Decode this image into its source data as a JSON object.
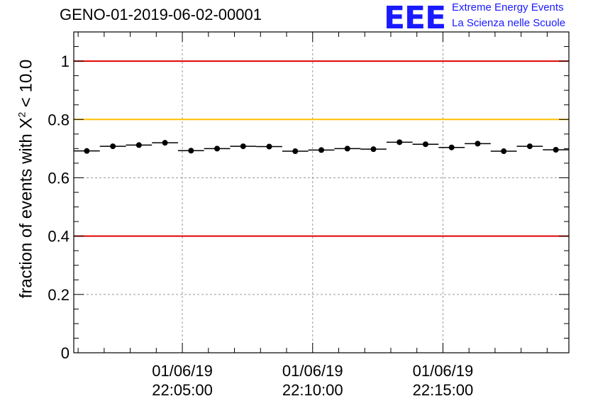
{
  "title": "GENO-01-2019-06-02-00001",
  "logo": {
    "text": "EEE",
    "line1": "Extreme Energy Events",
    "line2": "La Scienza nelle Scuole",
    "color": "#1a1aff"
  },
  "chart_data": {
    "type": "scatter",
    "title": "GENO-01-2019-06-02-00001",
    "ylabel_prefix": "fraction of events with X",
    "ylabel_sup": "2",
    "ylabel_suffix": " < 10.0",
    "xlabel": "",
    "xlim": [
      "22:00:50",
      "22:19:50"
    ],
    "ylim": [
      0,
      1.1
    ],
    "yticks": [
      0,
      0.2,
      0.4,
      0.6,
      0.8,
      1
    ],
    "ytick_labels": [
      "0",
      "0.2",
      "0.4",
      "0.6",
      "0.8",
      "1"
    ],
    "xticks": [
      {
        "time": "22:05:00",
        "date": "01/06/19",
        "label": "22:05:00"
      },
      {
        "time": "22:10:00",
        "date": "01/06/19",
        "label": "22:10:00"
      },
      {
        "time": "22:15:00",
        "date": "01/06/19",
        "label": "22:15:00"
      }
    ],
    "bin_width_seconds": 60,
    "x": [
      "22:01:20",
      "22:02:20",
      "22:03:20",
      "22:04:20",
      "22:05:20",
      "22:06:20",
      "22:07:20",
      "22:08:20",
      "22:09:20",
      "22:10:20",
      "22:11:20",
      "22:12:20",
      "22:13:20",
      "22:14:20",
      "22:15:20",
      "22:16:20",
      "22:17:20",
      "22:18:20",
      "22:19:20"
    ],
    "values": [
      0.692,
      0.708,
      0.712,
      0.72,
      0.693,
      0.7,
      0.708,
      0.707,
      0.691,
      0.695,
      0.7,
      0.698,
      0.722,
      0.715,
      0.704,
      0.717,
      0.691,
      0.708,
      0.696
    ],
    "reference_lines": [
      {
        "y": 1.0,
        "color": "#e00000"
      },
      {
        "y": 0.8,
        "color": "#ffc000"
      },
      {
        "y": 0.4,
        "color": "#e00000"
      }
    ],
    "grid": true,
    "marker_color": "#000000"
  }
}
